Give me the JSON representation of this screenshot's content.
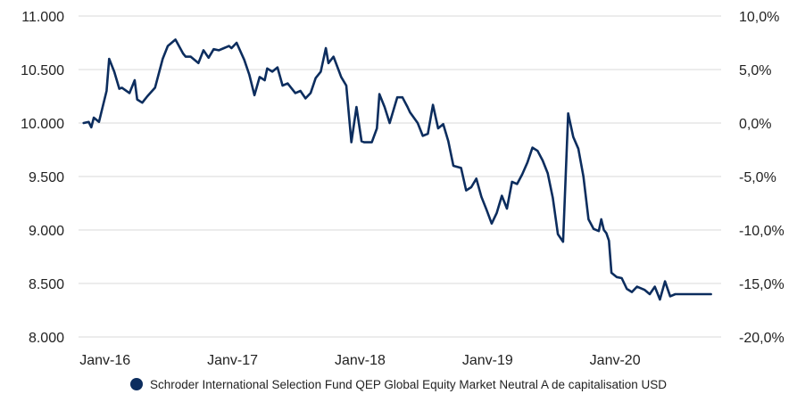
{
  "chart_data": {
    "type": "line",
    "title": "",
    "xlabel": "",
    "ylabel": "",
    "ylim": [
      8000,
      11000
    ],
    "y_ticks": [
      "11.000",
      "10.500",
      "10.000",
      "9.500",
      "9.000",
      "8.500",
      "8.000"
    ],
    "y_tick_values": [
      11000,
      10500,
      10000,
      9500,
      9000,
      8500,
      8000
    ],
    "y2_ticks": [
      "10,0%",
      "5,0%",
      "0,0%",
      "-5,0%",
      "-10,0%",
      "-15,0%",
      "-20,0%"
    ],
    "y2_tick_values": [
      11000,
      10500,
      10000,
      9500,
      9000,
      8500,
      8000
    ],
    "x_ticks": [
      "Janv-16",
      "Janv-17",
      "Janv-18",
      "Janv-19",
      "Janv-20"
    ],
    "x_tick_values": [
      2016.0,
      2017.0,
      2018.0,
      2019.0,
      2020.0
    ],
    "xlim": [
      2015.96,
      2021.0
    ],
    "grid": "horizontal",
    "legend_position": "bottom",
    "line_color": "#0c2d5e",
    "series": [
      {
        "name": "Schroder International Selection Fund QEP Global Equity Market Neutral A de capitalisation USD",
        "x": [
          2016.0,
          2016.04,
          2016.06,
          2016.08,
          2016.12,
          2016.18,
          2016.2,
          2016.24,
          2016.28,
          2016.3,
          2016.36,
          2016.4,
          2016.42,
          2016.46,
          2016.5,
          2016.56,
          2016.62,
          2016.66,
          2016.72,
          2016.78,
          2016.8,
          2016.84,
          2016.9,
          2016.94,
          2016.98,
          2017.02,
          2017.06,
          2017.1,
          2017.14,
          2017.16,
          2017.2,
          2017.26,
          2017.3,
          2017.34,
          2017.38,
          2017.42,
          2017.44,
          2017.48,
          2017.52,
          2017.56,
          2017.6,
          2017.66,
          2017.7,
          2017.74,
          2017.78,
          2017.82,
          2017.86,
          2017.9,
          2017.92,
          2017.96,
          2018.02,
          2018.06,
          2018.1,
          2018.14,
          2018.18,
          2018.2,
          2018.26,
          2018.3,
          2018.32,
          2018.36,
          2018.4,
          2018.46,
          2018.5,
          2018.54,
          2018.56,
          2018.62,
          2018.66,
          2018.7,
          2018.74,
          2018.78,
          2018.82,
          2018.86,
          2018.9,
          2018.96,
          2019.0,
          2019.04,
          2019.08,
          2019.12,
          2019.16,
          2019.2,
          2019.24,
          2019.28,
          2019.32,
          2019.36,
          2019.4,
          2019.44,
          2019.48,
          2019.52,
          2019.56,
          2019.6,
          2019.64,
          2019.68,
          2019.72,
          2019.76,
          2019.8,
          2019.84,
          2019.88,
          2019.92,
          2019.96,
          2020.0,
          2020.04,
          2020.06,
          2020.08,
          2020.1,
          2020.12,
          2020.14,
          2020.18,
          2020.22,
          2020.26,
          2020.3,
          2020.34,
          2020.4,
          2020.44,
          2020.48,
          2020.52,
          2020.56,
          2020.6,
          2020.64,
          2020.68,
          2020.72,
          2020.76,
          2020.8,
          2020.84,
          2020.88,
          2020.9,
          2020.92
        ],
        "values": [
          10000,
          10010,
          9960,
          10050,
          10010,
          10300,
          10600,
          10480,
          10320,
          10330,
          10280,
          10400,
          10220,
          10190,
          10250,
          10330,
          10600,
          10720,
          10780,
          10650,
          10620,
          10620,
          10560,
          10680,
          10610,
          10690,
          10680,
          10700,
          10720,
          10700,
          10750,
          10590,
          10450,
          10260,
          10430,
          10400,
          10510,
          10480,
          10520,
          10350,
          10370,
          10280,
          10300,
          10230,
          10280,
          10420,
          10480,
          10700,
          10560,
          10620,
          10430,
          10350,
          9820,
          10150,
          9830,
          9820,
          9820,
          9950,
          10270,
          10150,
          10000,
          10240,
          10240,
          10150,
          10100,
          10000,
          9880,
          9900,
          10170,
          9950,
          9990,
          9830,
          9600,
          9580,
          9370,
          9400,
          9480,
          9310,
          9190,
          9060,
          9160,
          9320,
          9200,
          9450,
          9430,
          9520,
          9630,
          9770,
          9740,
          9650,
          9530,
          9300,
          8960,
          8890,
          10090,
          9870,
          9760,
          9500,
          9100,
          9010,
          8990,
          9100,
          9000,
          8970,
          8900,
          8600,
          8560,
          8550,
          8450,
          8420,
          8470,
          8440,
          8400,
          8470,
          8350,
          8520,
          8380,
          8400,
          8400,
          8400,
          8400,
          8400,
          8400,
          8400,
          8400,
          8400
        ]
      }
    ]
  }
}
